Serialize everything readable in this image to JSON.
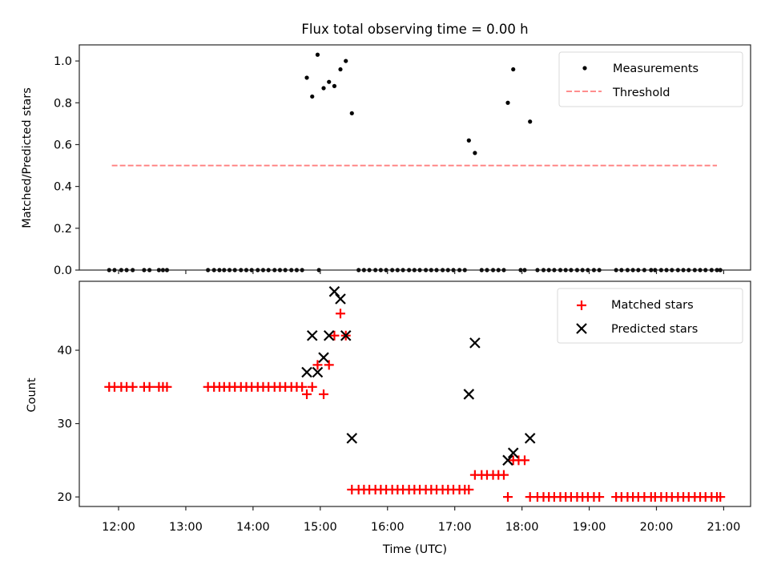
{
  "chart_data": [
    {
      "type": "scatter",
      "panel": "top",
      "title": "Flux total observing time = 0.00 h",
      "xlabel": "",
      "ylabel": "Matched/Predicted stars",
      "xlim_hours": [
        11.416,
        21.4
      ],
      "ylim": [
        0,
        1.077
      ],
      "yticks": [
        0.0,
        0.2,
        0.4,
        0.6,
        0.8,
        1.0
      ],
      "ytick_labels": [
        "0.0",
        "0.2",
        "0.4",
        "0.6",
        "0.8",
        "1.0"
      ],
      "xticks_hours": [
        12,
        13,
        14,
        15,
        16,
        17,
        18,
        19,
        20,
        21
      ],
      "grid": false,
      "legend": {
        "placement": "top-right",
        "entries": [
          {
            "label": "Measurements",
            "marker": "dot",
            "color": "#000000"
          },
          {
            "label": "Threshold",
            "marker": "dashed-line",
            "color": "#ff7f7f"
          }
        ]
      },
      "threshold": {
        "value": 0.5,
        "x_range_hours": [
          11.9,
          20.9
        ],
        "color": "#ff7f7f"
      }
    },
    {
      "type": "scatter",
      "panel": "bottom",
      "title": "",
      "xlabel": "Time (UTC)",
      "ylabel": "Count",
      "xlim_hours": [
        11.416,
        21.4
      ],
      "ylim": [
        18.7,
        49.4
      ],
      "yticks": [
        20,
        30,
        40
      ],
      "ytick_labels": [
        "20",
        "30",
        "40"
      ],
      "xticks_hours": [
        12,
        13,
        14,
        15,
        16,
        17,
        18,
        19,
        20,
        21
      ],
      "xtick_labels": [
        "12:00",
        "13:00",
        "14:00",
        "15:00",
        "16:00",
        "17:00",
        "18:00",
        "19:00",
        "20:00",
        "21:00"
      ],
      "grid": false,
      "legend": {
        "placement": "top-right",
        "entries": [
          {
            "label": "Matched stars",
            "marker": "plus",
            "color": "#ff0000"
          },
          {
            "label": "Predicted stars",
            "marker": "x",
            "color": "#000000"
          }
        ]
      }
    }
  ],
  "series": {
    "measurements": {
      "time_hours": [
        11.86,
        11.94,
        12.04,
        12.12,
        12.21,
        12.38,
        12.46,
        12.6,
        12.66,
        12.72,
        13.33,
        13.42,
        13.5,
        13.57,
        13.65,
        13.73,
        13.82,
        13.9,
        13.98,
        14.07,
        14.15,
        14.23,
        14.32,
        14.4,
        14.48,
        14.57,
        14.65,
        14.73,
        14.98,
        15.57,
        15.65,
        15.73,
        15.82,
        15.9,
        15.98,
        16.07,
        16.15,
        16.23,
        16.32,
        16.4,
        16.48,
        16.57,
        16.65,
        16.73,
        16.82,
        16.9,
        16.98,
        17.07,
        17.15,
        17.4,
        17.48,
        17.57,
        17.65,
        17.73,
        17.98,
        18.04,
        18.23,
        18.32,
        18.4,
        18.48,
        18.57,
        18.65,
        18.73,
        18.82,
        18.9,
        18.98,
        19.07,
        19.15,
        19.4,
        19.48,
        19.57,
        19.65,
        19.73,
        19.82,
        19.92,
        19.98,
        20.07,
        20.15,
        20.23,
        20.32,
        20.4,
        20.48,
        20.57,
        20.65,
        20.73,
        20.82,
        20.9,
        20.95,
        14.8,
        14.88,
        14.96,
        15.05,
        15.13,
        15.21,
        15.3,
        15.38,
        15.47,
        17.21,
        17.3,
        17.79,
        17.87,
        18.12
      ],
      "ratio": [
        0,
        0,
        0,
        0,
        0,
        0,
        0,
        0,
        0,
        0,
        0,
        0,
        0,
        0,
        0,
        0,
        0,
        0,
        0,
        0,
        0,
        0,
        0,
        0,
        0,
        0,
        0,
        0,
        0,
        0,
        0,
        0,
        0,
        0,
        0,
        0,
        0,
        0,
        0,
        0,
        0,
        0,
        0,
        0,
        0,
        0,
        0,
        0,
        0,
        0,
        0,
        0,
        0,
        0,
        0,
        0,
        0,
        0,
        0,
        0,
        0,
        0,
        0,
        0,
        0,
        0,
        0,
        0,
        0,
        0,
        0,
        0,
        0,
        0,
        0,
        0,
        0,
        0,
        0,
        0,
        0,
        0,
        0,
        0,
        0,
        0,
        0,
        0,
        0.92,
        0.83,
        1.03,
        0.87,
        0.9,
        0.88,
        0.96,
        1.0,
        0.75,
        0.62,
        0.56,
        0.8,
        0.96,
        0.71
      ]
    },
    "matched": {
      "time_hours": [
        11.86,
        11.94,
        12.04,
        12.12,
        12.21,
        12.38,
        12.46,
        12.6,
        12.66,
        12.72,
        13.33,
        13.42,
        13.5,
        13.57,
        13.65,
        13.73,
        13.82,
        13.9,
        13.98,
        14.07,
        14.15,
        14.23,
        14.32,
        14.4,
        14.48,
        14.57,
        14.65,
        14.73,
        14.8,
        14.88,
        14.96,
        15.05,
        15.13,
        15.21,
        15.3,
        15.38,
        15.47,
        15.57,
        15.65,
        15.73,
        15.82,
        15.9,
        15.98,
        16.07,
        16.15,
        16.23,
        16.32,
        16.4,
        16.48,
        16.57,
        16.65,
        16.73,
        16.82,
        16.9,
        16.98,
        17.07,
        17.15,
        17.21,
        17.3,
        17.4,
        17.48,
        17.57,
        17.65,
        17.73,
        17.79,
        17.87,
        17.95,
        18.04,
        18.12,
        18.23,
        18.32,
        18.4,
        18.48,
        18.57,
        18.65,
        18.73,
        18.82,
        18.9,
        18.98,
        19.07,
        19.15,
        19.4,
        19.48,
        19.57,
        19.65,
        19.73,
        19.82,
        19.92,
        19.98,
        20.07,
        20.15,
        20.23,
        20.32,
        20.4,
        20.48,
        20.57,
        20.65,
        20.73,
        20.82,
        20.9,
        20.95
      ],
      "count": [
        35,
        35,
        35,
        35,
        35,
        35,
        35,
        35,
        35,
        35,
        35,
        35,
        35,
        35,
        35,
        35,
        35,
        35,
        35,
        35,
        35,
        35,
        35,
        35,
        35,
        35,
        35,
        35,
        34,
        35,
        38,
        34,
        38,
        42,
        45,
        42,
        21,
        21,
        21,
        21,
        21,
        21,
        21,
        21,
        21,
        21,
        21,
        21,
        21,
        21,
        21,
        21,
        21,
        21,
        21,
        21,
        21,
        21,
        23,
        23,
        23,
        23,
        23,
        23,
        20,
        25,
        25,
        25,
        20,
        20,
        20,
        20,
        20,
        20,
        20,
        20,
        20,
        20,
        20,
        20,
        20,
        20,
        20,
        20,
        20,
        20,
        20,
        20,
        20,
        20,
        20,
        20,
        20,
        20,
        20,
        20,
        20,
        20,
        20,
        20,
        20
      ]
    },
    "predicted": {
      "time_hours": [
        14.8,
        14.88,
        14.96,
        15.05,
        15.13,
        15.21,
        15.3,
        15.38,
        15.47,
        17.21,
        17.3,
        17.79,
        17.87,
        18.12
      ],
      "count": [
        37,
        42,
        37,
        39,
        42,
        48,
        47,
        42,
        28,
        34,
        41,
        25,
        26,
        28
      ]
    }
  }
}
